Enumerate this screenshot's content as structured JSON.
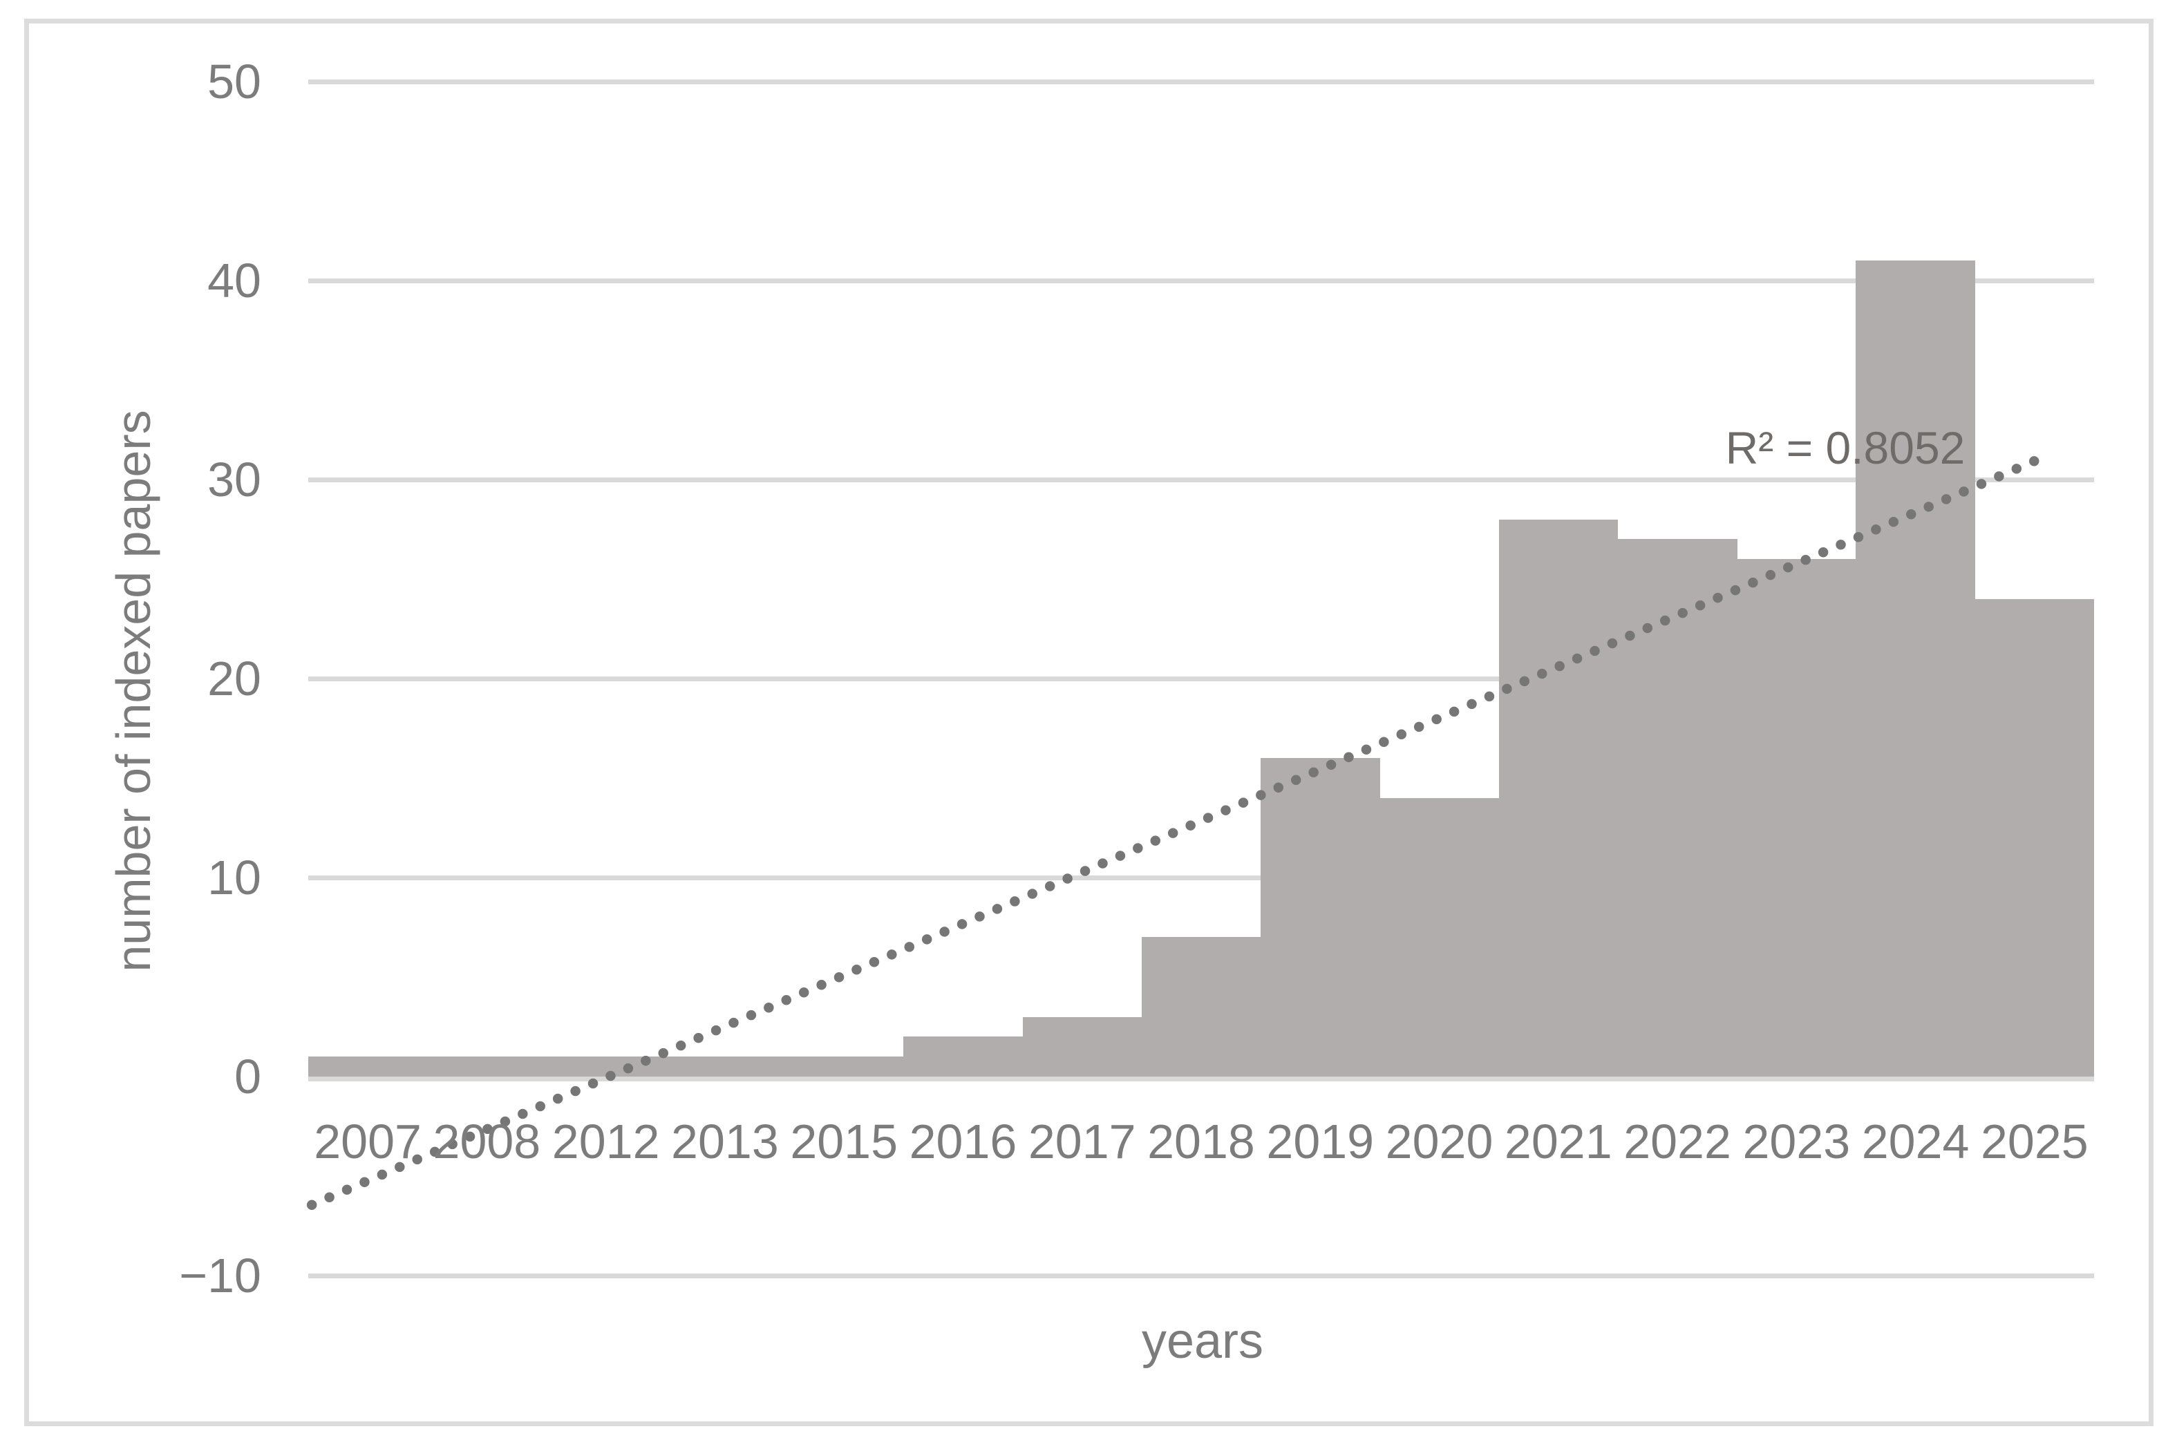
{
  "chart_data": {
    "type": "bar",
    "title": "",
    "categories": [
      "2007",
      "2008",
      "2012",
      "2013",
      "2015",
      "2016",
      "2017",
      "2018",
      "2019",
      "2020",
      "2021",
      "2022",
      "2023",
      "2024",
      "2025"
    ],
    "values": [
      1,
      1,
      1,
      1,
      1,
      2,
      3,
      7,
      16,
      14,
      28,
      27,
      26,
      41,
      24
    ],
    "xlabel": "years",
    "ylabel": "number of indexed papers",
    "ylim": [
      -10,
      50
    ],
    "yticks": [
      {
        "value": 50,
        "label": "50"
      },
      {
        "value": 40,
        "label": "40"
      },
      {
        "value": 30,
        "label": "30"
      },
      {
        "value": 20,
        "label": "20"
      },
      {
        "value": 10,
        "label": "10"
      },
      {
        "value": 0,
        "label": "0"
      },
      {
        "value": -10,
        "label": "−10"
      }
    ],
    "grid": true,
    "legend": "none",
    "bar_gap": 0,
    "colors": {
      "bar": "#b1adac",
      "gridline": "#d9d9d9",
      "figure_border": "#dcdcdc",
      "axis_text": "#7c7c7c",
      "trendline": "#767676",
      "r2_text": "#6f6b69"
    },
    "trendline": {
      "shape": "linear",
      "style": "dotted",
      "r2_label": "R² = 0.8052",
      "start": {
        "axis_fraction": 0.002,
        "value": -6.45
      },
      "end": {
        "axis_fraction": 0.971,
        "value": 31.1
      }
    }
  }
}
